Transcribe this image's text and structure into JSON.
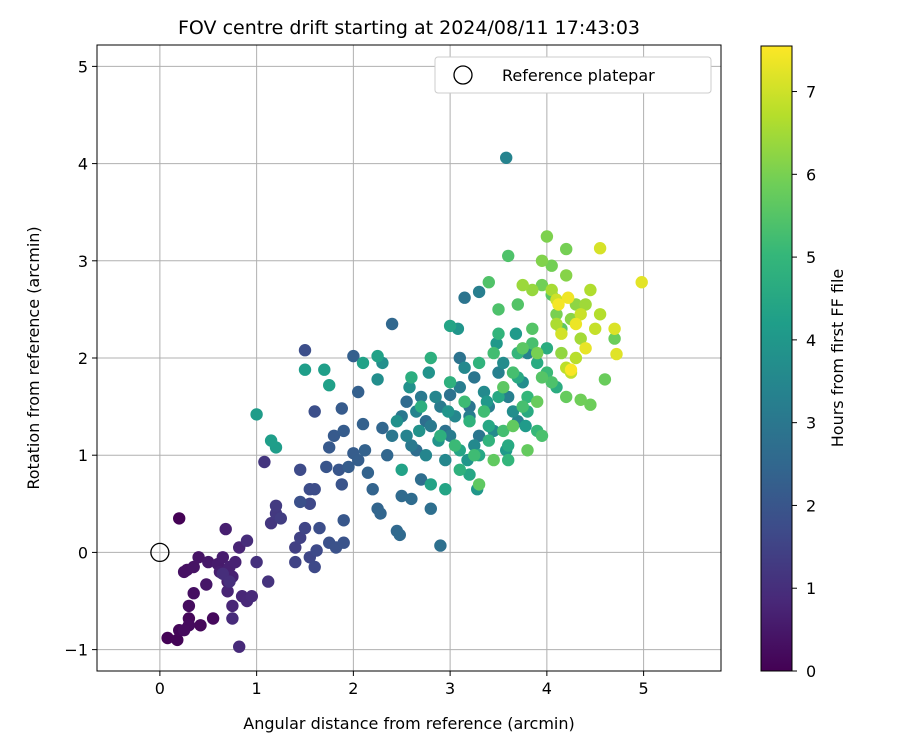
{
  "chart_data": {
    "type": "scatter",
    "title": "FOV centre drift starting at 2024/08/11 17:43:03",
    "xlabel": "Angular distance from reference (arcmin)",
    "ylabel": "Rotation from reference (arcmin)",
    "xlim": [
      -0.65,
      5.8
    ],
    "ylim": [
      -1.22,
      5.22
    ],
    "xticks": [
      0,
      1,
      2,
      3,
      4,
      5
    ],
    "yticks": [
      -1,
      0,
      1,
      2,
      3,
      4,
      5
    ],
    "grid": true,
    "legend": {
      "position": "top-right",
      "entries": [
        "Reference platepar"
      ]
    },
    "reference_point": {
      "x": 0,
      "y": 0
    },
    "colorbar": {
      "label": "Hours from first FF file",
      "min": 0,
      "max": 7.55,
      "ticks": [
        0,
        1,
        2,
        3,
        4,
        5,
        6,
        7
      ],
      "colormap": "viridis",
      "stops": [
        "#440154",
        "#482878",
        "#3e4a89",
        "#31688e",
        "#26828e",
        "#1f9e89",
        "#35b779",
        "#6ece58",
        "#b5de2b",
        "#fde725"
      ]
    },
    "points": [
      [
        0.2,
        0.35,
        0.03
      ],
      [
        0.08,
        -0.88,
        0.05
      ],
      [
        0.18,
        -0.9,
        0.08
      ],
      [
        0.2,
        -0.8,
        0.1
      ],
      [
        0.3,
        -0.68,
        0.12
      ],
      [
        0.42,
        -0.75,
        0.15
      ],
      [
        0.55,
        -0.68,
        0.18
      ],
      [
        0.3,
        -0.75,
        0.2
      ],
      [
        0.25,
        -0.8,
        0.22
      ],
      [
        0.3,
        -0.55,
        0.25
      ],
      [
        0.35,
        -0.42,
        0.3
      ],
      [
        0.28,
        -0.18,
        0.32
      ],
      [
        0.25,
        -0.2,
        0.35
      ],
      [
        0.35,
        -0.15,
        0.38
      ],
      [
        0.4,
        -0.05,
        0.4
      ],
      [
        0.48,
        -0.33,
        0.45
      ],
      [
        0.5,
        -0.1,
        0.5
      ],
      [
        0.6,
        -0.12,
        0.55
      ],
      [
        0.65,
        -0.05,
        0.58
      ],
      [
        0.7,
        -0.3,
        0.6
      ],
      [
        0.62,
        -0.2,
        0.62
      ],
      [
        0.68,
        0.24,
        0.65
      ],
      [
        0.72,
        -0.15,
        0.68
      ],
      [
        0.75,
        -0.25,
        0.7
      ],
      [
        0.78,
        -0.1,
        0.72
      ],
      [
        0.82,
        0.05,
        0.75
      ],
      [
        0.7,
        -0.4,
        0.78
      ],
      [
        0.75,
        -0.55,
        0.8
      ],
      [
        0.85,
        -0.45,
        0.82
      ],
      [
        0.9,
        -0.5,
        0.85
      ],
      [
        0.95,
        -0.45,
        0.88
      ],
      [
        0.82,
        -0.97,
        0.9
      ],
      [
        0.75,
        -0.68,
        0.92
      ],
      [
        0.9,
        0.12,
        0.95
      ],
      [
        0.65,
        -0.22,
        0.98
      ],
      [
        0.72,
        -0.3,
        1.0
      ],
      [
        1.0,
        -0.1,
        1.05
      ],
      [
        1.12,
        -0.3,
        1.1
      ],
      [
        1.08,
        0.93,
        1.15
      ],
      [
        1.15,
        0.3,
        1.2
      ],
      [
        1.2,
        0.4,
        1.25
      ],
      [
        1.2,
        0.48,
        1.3
      ],
      [
        1.25,
        0.35,
        1.35
      ],
      [
        1.4,
        0.05,
        1.4
      ],
      [
        1.45,
        0.15,
        1.45
      ],
      [
        1.4,
        -0.1,
        1.5
      ],
      [
        1.5,
        0.25,
        1.55
      ],
      [
        1.55,
        -0.05,
        1.6
      ],
      [
        1.55,
        0.5,
        1.62
      ],
      [
        1.6,
        -0.15,
        1.65
      ],
      [
        1.62,
        0.02,
        1.68
      ],
      [
        1.45,
        0.85,
        1.7
      ],
      [
        1.55,
        0.65,
        1.72
      ],
      [
        1.6,
        0.65,
        1.75
      ],
      [
        1.65,
        0.25,
        1.78
      ],
      [
        1.5,
        2.08,
        1.8
      ],
      [
        1.6,
        1.45,
        1.82
      ],
      [
        1.45,
        0.52,
        1.85
      ],
      [
        1.75,
        0.1,
        1.88
      ],
      [
        1.82,
        0.05,
        1.9
      ],
      [
        1.9,
        0.1,
        1.92
      ],
      [
        1.88,
        0.7,
        1.95
      ],
      [
        1.72,
        0.88,
        1.98
      ],
      [
        1.85,
        0.85,
        2.0
      ],
      [
        1.9,
        0.33,
        2.05
      ],
      [
        1.75,
        1.08,
        2.1
      ],
      [
        1.8,
        1.2,
        2.12
      ],
      [
        1.88,
        1.48,
        2.15
      ],
      [
        1.9,
        1.25,
        2.18
      ],
      [
        1.95,
        0.88,
        2.2
      ],
      [
        2.0,
        1.02,
        2.22
      ],
      [
        2.05,
        0.95,
        2.25
      ],
      [
        2.0,
        2.02,
        2.28
      ],
      [
        2.05,
        1.65,
        2.3
      ],
      [
        2.1,
        1.32,
        2.32
      ],
      [
        2.12,
        1.05,
        2.35
      ],
      [
        2.15,
        0.82,
        2.38
      ],
      [
        2.2,
        0.65,
        2.4
      ],
      [
        2.25,
        0.45,
        2.42
      ],
      [
        2.28,
        0.4,
        2.45
      ],
      [
        2.3,
        1.28,
        2.48
      ],
      [
        2.35,
        1.0,
        2.5
      ],
      [
        2.4,
        2.35,
        2.52
      ],
      [
        2.45,
        0.22,
        2.55
      ],
      [
        2.48,
        0.18,
        2.58
      ],
      [
        2.5,
        0.58,
        2.6
      ],
      [
        2.55,
        1.55,
        2.62
      ],
      [
        2.6,
        0.55,
        2.65
      ],
      [
        2.65,
        1.05,
        2.68
      ],
      [
        2.7,
        0.75,
        2.7
      ],
      [
        2.75,
        1.35,
        2.72
      ],
      [
        2.8,
        0.45,
        2.75
      ],
      [
        2.9,
        0.07,
        2.78
      ],
      [
        2.95,
        1.25,
        2.82
      ],
      [
        3.0,
        1.62,
        2.85
      ],
      [
        3.1,
        2.0,
        2.88
      ],
      [
        3.15,
        2.62,
        2.9
      ],
      [
        3.2,
        1.5,
        2.92
      ],
      [
        3.25,
        1.8,
        2.95
      ],
      [
        3.3,
        1.2,
        2.98
      ],
      [
        2.4,
        1.2,
        3.0
      ],
      [
        2.5,
        1.4,
        3.02
      ],
      [
        2.6,
        1.1,
        3.05
      ],
      [
        2.7,
        1.6,
        3.08
      ],
      [
        2.8,
        1.3,
        3.1
      ],
      [
        2.9,
        1.5,
        3.12
      ],
      [
        3.0,
        1.2,
        3.15
      ],
      [
        3.1,
        1.7,
        3.18
      ],
      [
        3.2,
        1.4,
        3.2
      ],
      [
        3.3,
        2.68,
        3.22
      ],
      [
        3.4,
        1.5,
        3.25
      ],
      [
        3.5,
        1.85,
        3.28
      ],
      [
        3.6,
        1.6,
        3.3
      ],
      [
        3.7,
        1.35,
        3.32
      ],
      [
        3.8,
        2.05,
        3.35
      ],
      [
        3.58,
        4.06,
        3.38
      ],
      [
        2.55,
        1.2,
        3.4
      ],
      [
        2.65,
        1.45,
        3.42
      ],
      [
        2.75,
        1.0,
        3.45
      ],
      [
        2.85,
        1.6,
        3.48
      ],
      [
        2.95,
        0.95,
        3.5
      ],
      [
        3.05,
        1.4,
        3.52
      ],
      [
        3.15,
        1.9,
        3.55
      ],
      [
        3.25,
        1.1,
        3.58
      ],
      [
        3.35,
        1.65,
        3.6
      ],
      [
        3.45,
        1.25,
        3.62
      ],
      [
        3.55,
        1.95,
        3.65
      ],
      [
        3.65,
        1.45,
        3.68
      ],
      [
        3.75,
        1.75,
        3.7
      ],
      [
        2.25,
        1.78,
        3.72
      ],
      [
        2.3,
        1.95,
        3.75
      ],
      [
        2.45,
        1.35,
        3.78
      ],
      [
        2.58,
        1.7,
        3.8
      ],
      [
        2.68,
        1.25,
        3.82
      ],
      [
        2.78,
        1.85,
        3.85
      ],
      [
        2.88,
        1.15,
        3.88
      ],
      [
        2.98,
        1.45,
        3.9
      ],
      [
        3.08,
        2.3,
        3.92
      ],
      [
        3.18,
        0.95,
        3.95
      ],
      [
        3.28,
        0.65,
        3.98
      ],
      [
        3.38,
        1.55,
        4.0
      ],
      [
        3.48,
        2.15,
        4.02
      ],
      [
        3.58,
        1.05,
        4.05
      ],
      [
        3.68,
        2.25,
        4.08
      ],
      [
        3.78,
        1.3,
        4.1
      ],
      [
        1.0,
        1.42,
        4.12
      ],
      [
        1.2,
        1.08,
        4.15
      ],
      [
        1.15,
        1.15,
        4.18
      ],
      [
        1.5,
        1.88,
        4.2
      ],
      [
        1.7,
        1.88,
        4.22
      ],
      [
        1.75,
        1.72,
        4.25
      ],
      [
        2.1,
        1.95,
        4.28
      ],
      [
        2.25,
        2.02,
        4.3
      ],
      [
        2.5,
        0.85,
        4.32
      ],
      [
        2.8,
        0.7,
        4.35
      ],
      [
        2.95,
        0.65,
        4.38
      ],
      [
        3.0,
        2.33,
        4.4
      ],
      [
        3.1,
        1.05,
        4.42
      ],
      [
        3.2,
        0.8,
        4.45
      ],
      [
        3.3,
        1.0,
        4.48
      ],
      [
        3.4,
        1.3,
        4.5
      ],
      [
        3.5,
        1.6,
        4.52
      ],
      [
        3.6,
        1.1,
        4.55
      ],
      [
        3.7,
        1.8,
        4.58
      ],
      [
        3.8,
        1.45,
        4.6
      ],
      [
        3.9,
        1.95,
        4.62
      ],
      [
        4.0,
        2.1,
        4.65
      ],
      [
        4.1,
        1.7,
        4.68
      ],
      [
        2.6,
        1.8,
        4.7
      ],
      [
        2.7,
        1.5,
        4.72
      ],
      [
        2.8,
        2.0,
        4.75
      ],
      [
        2.9,
        1.2,
        4.78
      ],
      [
        3.0,
        1.75,
        4.8
      ],
      [
        3.1,
        0.85,
        4.82
      ],
      [
        3.2,
        1.35,
        4.85
      ],
      [
        3.3,
        1.95,
        4.88
      ],
      [
        3.4,
        1.15,
        4.9
      ],
      [
        3.5,
        2.25,
        4.92
      ],
      [
        3.6,
        0.95,
        4.95
      ],
      [
        3.7,
        2.05,
        4.98
      ],
      [
        3.8,
        1.6,
        5.0
      ],
      [
        3.9,
        1.25,
        5.05
      ],
      [
        4.0,
        1.85,
        5.1
      ],
      [
        3.05,
        1.1,
        5.12
      ],
      [
        3.15,
        1.55,
        5.15
      ],
      [
        3.25,
        1.0,
        5.18
      ],
      [
        3.35,
        1.45,
        5.2
      ],
      [
        3.45,
        2.05,
        5.22
      ],
      [
        3.55,
        1.25,
        5.25
      ],
      [
        3.65,
        1.85,
        5.28
      ],
      [
        3.75,
        1.5,
        5.3
      ],
      [
        3.85,
        2.15,
        5.32
      ],
      [
        3.95,
        1.2,
        5.35
      ],
      [
        4.05,
        1.75,
        5.38
      ],
      [
        3.5,
        2.5,
        5.4
      ],
      [
        3.6,
        3.05,
        5.42
      ],
      [
        3.4,
        2.78,
        5.45
      ],
      [
        3.7,
        2.55,
        5.48
      ],
      [
        3.85,
        2.3,
        5.5
      ],
      [
        3.95,
        1.8,
        5.52
      ],
      [
        4.05,
        2.65,
        5.55
      ],
      [
        3.75,
        2.1,
        5.58
      ],
      [
        3.55,
        1.7,
        5.6
      ],
      [
        4.15,
        2.3,
        5.62
      ],
      [
        3.3,
        0.7,
        5.65
      ],
      [
        3.45,
        0.95,
        5.68
      ],
      [
        3.65,
        1.3,
        5.7
      ],
      [
        3.8,
        1.05,
        5.72
      ],
      [
        4.2,
        1.6,
        5.75
      ],
      [
        3.9,
        1.55,
        5.78
      ],
      [
        4.6,
        1.78,
        5.8
      ],
      [
        4.7,
        2.2,
        5.82
      ],
      [
        4.45,
        1.52,
        5.85
      ],
      [
        4.35,
        1.57,
        5.88
      ],
      [
        3.95,
        2.75,
        5.9
      ],
      [
        4.05,
        2.95,
        5.92
      ],
      [
        4.2,
        3.12,
        5.95
      ],
      [
        3.9,
        2.05,
        5.98
      ],
      [
        4.1,
        2.45,
        6.0
      ],
      [
        4.0,
        3.25,
        6.05
      ],
      [
        3.95,
        3.0,
        6.1
      ],
      [
        4.2,
        2.85,
        6.15
      ],
      [
        4.25,
        2.4,
        6.2
      ],
      [
        4.3,
        2.55,
        6.25
      ],
      [
        4.15,
        2.05,
        6.3
      ],
      [
        3.85,
        2.7,
        6.35
      ],
      [
        3.75,
        2.75,
        6.4
      ],
      [
        4.4,
        2.55,
        6.45
      ],
      [
        4.35,
        2.2,
        6.5
      ],
      [
        4.05,
        2.7,
        6.55
      ],
      [
        4.1,
        2.35,
        6.6
      ],
      [
        4.45,
        2.7,
        6.65
      ],
      [
        4.55,
        2.45,
        6.7
      ],
      [
        4.3,
        2.0,
        6.75
      ],
      [
        4.2,
        1.9,
        6.8
      ],
      [
        4.25,
        1.85,
        6.85
      ],
      [
        4.5,
        2.3,
        6.9
      ],
      [
        4.35,
        2.45,
        6.95
      ],
      [
        4.1,
        2.6,
        7.0
      ],
      [
        4.15,
        2.25,
        7.05
      ],
      [
        4.55,
        3.13,
        7.1
      ],
      [
        4.7,
        2.3,
        7.15
      ],
      [
        4.72,
        2.04,
        7.2
      ],
      [
        4.98,
        2.78,
        7.25
      ],
      [
        4.4,
        2.1,
        7.3
      ],
      [
        4.3,
        2.35,
        7.35
      ],
      [
        4.22,
        2.62,
        7.4
      ],
      [
        4.12,
        2.55,
        7.45
      ],
      [
        4.25,
        1.88,
        7.5
      ]
    ]
  }
}
